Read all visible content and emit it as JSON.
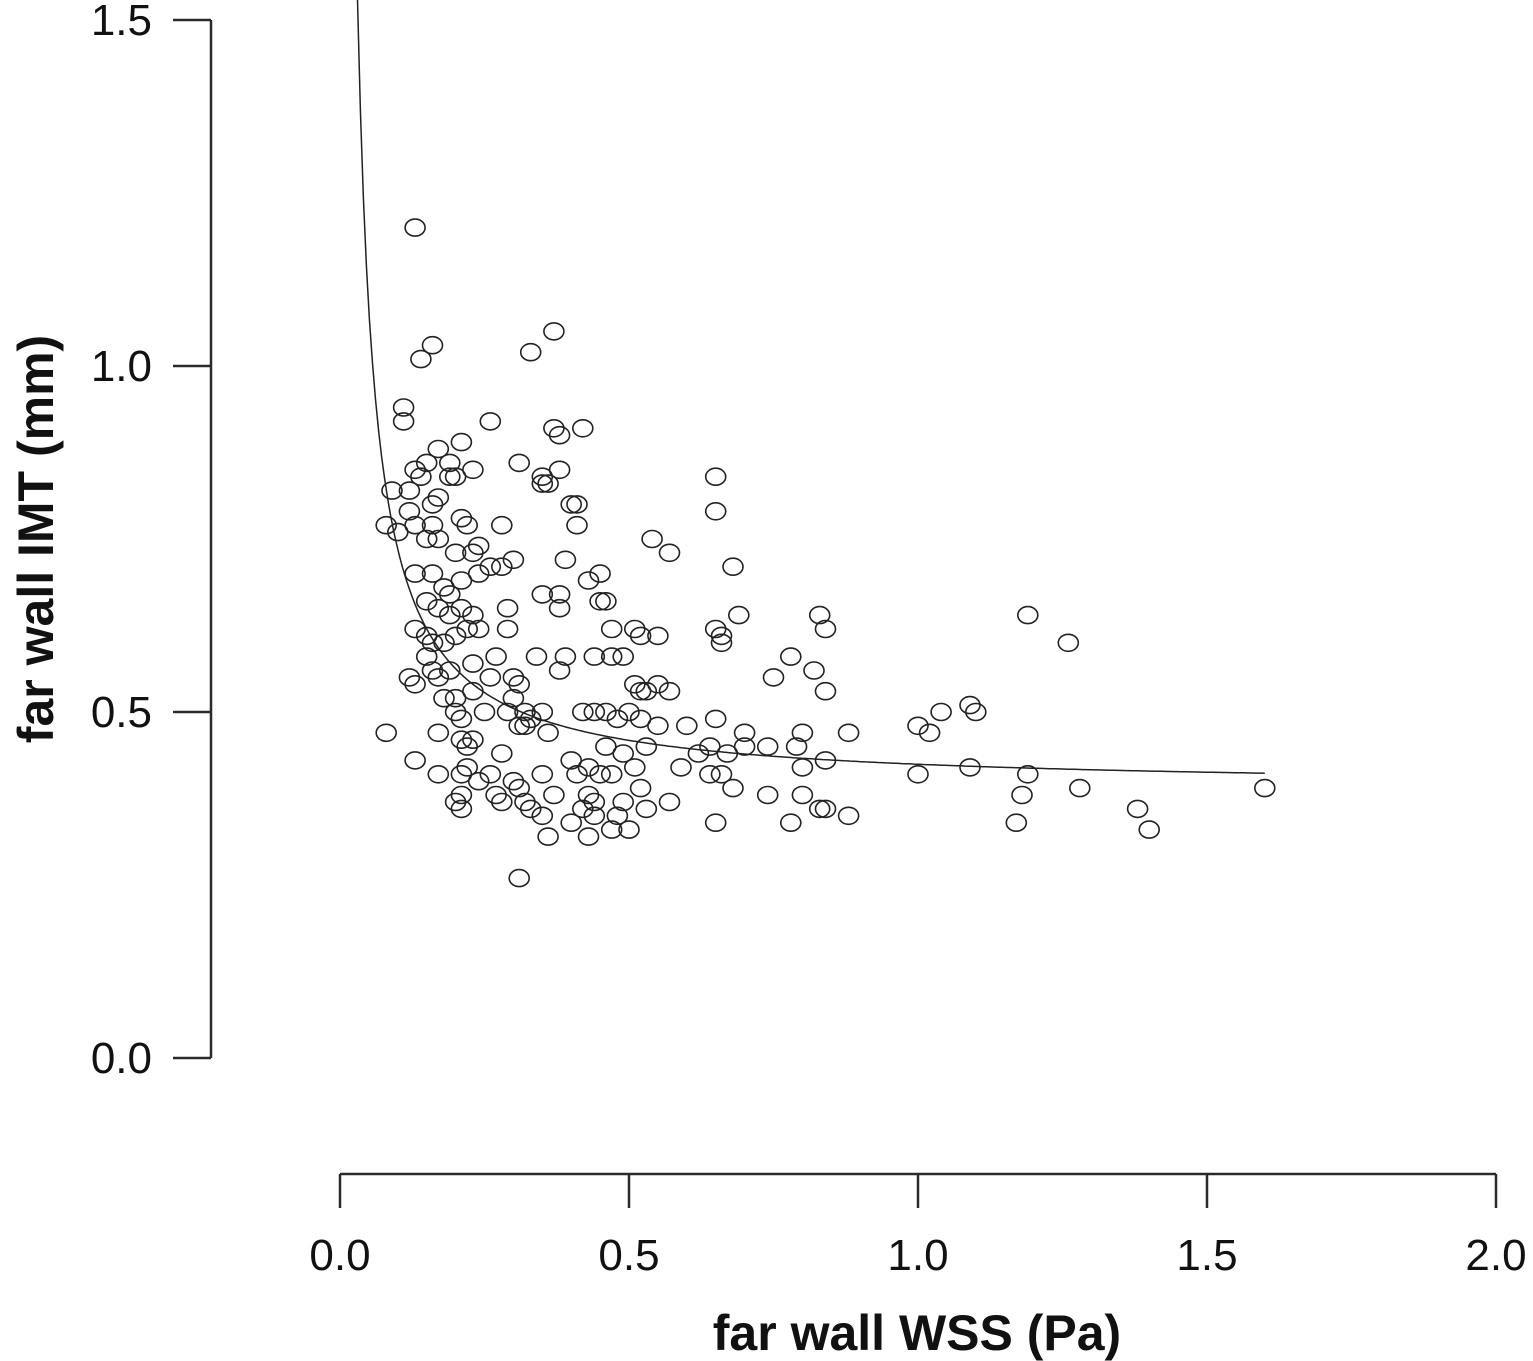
{
  "chart_data": {
    "type": "scatter",
    "xlabel": "far wall WSS (Pa)",
    "ylabel": "far wall IMT (mm)",
    "xlim": [
      0.0,
      2.0
    ],
    "ylim": [
      0.0,
      1.5
    ],
    "x_ticks": [
      "0.0",
      "0.5",
      "1.0",
      "1.5",
      "2.0"
    ],
    "y_ticks": [
      "0.0",
      "0.5",
      "1.0",
      "1.5"
    ],
    "grid": false,
    "fit_curve": {
      "form": "y = a + b / x",
      "a": 0.39,
      "b": 0.0345,
      "x_range": [
        0.03,
        1.6
      ]
    },
    "points": [
      [
        0.13,
        1.2
      ],
      [
        0.16,
        1.03
      ],
      [
        0.14,
        1.01
      ],
      [
        0.37,
        1.05
      ],
      [
        0.33,
        1.02
      ],
      [
        0.11,
        0.94
      ],
      [
        0.11,
        0.92
      ],
      [
        0.26,
        0.92
      ],
      [
        0.37,
        0.91
      ],
      [
        0.38,
        0.9
      ],
      [
        0.42,
        0.91
      ],
      [
        0.21,
        0.89
      ],
      [
        0.17,
        0.88
      ],
      [
        0.15,
        0.86
      ],
      [
        0.13,
        0.85
      ],
      [
        0.14,
        0.84
      ],
      [
        0.19,
        0.86
      ],
      [
        0.19,
        0.84
      ],
      [
        0.23,
        0.85
      ],
      [
        0.31,
        0.86
      ],
      [
        0.35,
        0.84
      ],
      [
        0.38,
        0.85
      ],
      [
        0.35,
        0.83
      ],
      [
        0.36,
        0.83
      ],
      [
        0.09,
        0.82
      ],
      [
        0.12,
        0.82
      ],
      [
        0.17,
        0.81
      ],
      [
        0.16,
        0.8
      ],
      [
        0.2,
        0.84
      ],
      [
        0.4,
        0.8
      ],
      [
        0.41,
        0.8
      ],
      [
        0.65,
        0.84
      ],
      [
        0.65,
        0.79
      ],
      [
        0.08,
        0.77
      ],
      [
        0.1,
        0.76
      ],
      [
        0.12,
        0.79
      ],
      [
        0.13,
        0.77
      ],
      [
        0.15,
        0.75
      ],
      [
        0.16,
        0.77
      ],
      [
        0.17,
        0.75
      ],
      [
        0.21,
        0.78
      ],
      [
        0.22,
        0.77
      ],
      [
        0.28,
        0.77
      ],
      [
        0.41,
        0.77
      ],
      [
        0.2,
        0.73
      ],
      [
        0.23,
        0.73
      ],
      [
        0.24,
        0.74
      ],
      [
        0.26,
        0.71
      ],
      [
        0.3,
        0.72
      ],
      [
        0.39,
        0.72
      ],
      [
        0.54,
        0.75
      ],
      [
        0.57,
        0.73
      ],
      [
        0.68,
        0.71
      ],
      [
        0.13,
        0.7
      ],
      [
        0.16,
        0.7
      ],
      [
        0.18,
        0.68
      ],
      [
        0.19,
        0.67
      ],
      [
        0.21,
        0.69
      ],
      [
        0.24,
        0.7
      ],
      [
        0.28,
        0.71
      ],
      [
        0.43,
        0.69
      ],
      [
        0.45,
        0.7
      ],
      [
        0.15,
        0.66
      ],
      [
        0.17,
        0.65
      ],
      [
        0.19,
        0.64
      ],
      [
        0.21,
        0.65
      ],
      [
        0.23,
        0.64
      ],
      [
        0.29,
        0.65
      ],
      [
        0.35,
        0.67
      ],
      [
        0.38,
        0.67
      ],
      [
        0.38,
        0.65
      ],
      [
        0.45,
        0.66
      ],
      [
        0.46,
        0.66
      ],
      [
        0.13,
        0.62
      ],
      [
        0.15,
        0.61
      ],
      [
        0.16,
        0.6
      ],
      [
        0.18,
        0.6
      ],
      [
        0.2,
        0.61
      ],
      [
        0.22,
        0.62
      ],
      [
        0.24,
        0.62
      ],
      [
        0.29,
        0.62
      ],
      [
        0.47,
        0.62
      ],
      [
        0.51,
        0.62
      ],
      [
        0.52,
        0.61
      ],
      [
        0.55,
        0.61
      ],
      [
        0.65,
        0.62
      ],
      [
        0.66,
        0.61
      ],
      [
        0.69,
        0.64
      ],
      [
        0.83,
        0.64
      ],
      [
        0.84,
        0.62
      ],
      [
        1.19,
        0.64
      ],
      [
        1.26,
        0.6
      ],
      [
        0.15,
        0.58
      ],
      [
        0.16,
        0.56
      ],
      [
        0.17,
        0.55
      ],
      [
        0.19,
        0.56
      ],
      [
        0.23,
        0.57
      ],
      [
        0.27,
        0.58
      ],
      [
        0.34,
        0.58
      ],
      [
        0.39,
        0.58
      ],
      [
        0.44,
        0.58
      ],
      [
        0.47,
        0.58
      ],
      [
        0.49,
        0.58
      ],
      [
        0.66,
        0.6
      ],
      [
        0.78,
        0.58
      ],
      [
        0.12,
        0.55
      ],
      [
        0.13,
        0.54
      ],
      [
        0.18,
        0.52
      ],
      [
        0.2,
        0.52
      ],
      [
        0.23,
        0.53
      ],
      [
        0.26,
        0.55
      ],
      [
        0.3,
        0.55
      ],
      [
        0.31,
        0.54
      ],
      [
        0.38,
        0.56
      ],
      [
        0.51,
        0.54
      ],
      [
        0.52,
        0.53
      ],
      [
        0.53,
        0.53
      ],
      [
        0.55,
        0.54
      ],
      [
        0.57,
        0.53
      ],
      [
        0.75,
        0.55
      ],
      [
        0.82,
        0.56
      ],
      [
        0.84,
        0.53
      ],
      [
        0.2,
        0.5
      ],
      [
        0.21,
        0.49
      ],
      [
        0.25,
        0.5
      ],
      [
        0.29,
        0.5
      ],
      [
        0.3,
        0.52
      ],
      [
        0.32,
        0.5
      ],
      [
        0.33,
        0.49
      ],
      [
        0.35,
        0.5
      ],
      [
        0.42,
        0.5
      ],
      [
        0.44,
        0.5
      ],
      [
        0.46,
        0.5
      ],
      [
        0.48,
        0.49
      ],
      [
        0.5,
        0.5
      ],
      [
        0.52,
        0.49
      ],
      [
        0.55,
        0.48
      ],
      [
        0.6,
        0.48
      ],
      [
        0.65,
        0.49
      ],
      [
        0.7,
        0.47
      ],
      [
        0.8,
        0.47
      ],
      [
        0.88,
        0.47
      ],
      [
        1.0,
        0.48
      ],
      [
        1.04,
        0.5
      ],
      [
        1.09,
        0.51
      ],
      [
        1.1,
        0.5
      ],
      [
        0.08,
        0.47
      ],
      [
        0.17,
        0.47
      ],
      [
        0.21,
        0.46
      ],
      [
        0.22,
        0.45
      ],
      [
        0.23,
        0.46
      ],
      [
        0.28,
        0.44
      ],
      [
        0.31,
        0.48
      ],
      [
        0.32,
        0.48
      ],
      [
        0.36,
        0.47
      ],
      [
        0.4,
        0.43
      ],
      [
        0.46,
        0.45
      ],
      [
        0.49,
        0.44
      ],
      [
        0.53,
        0.45
      ],
      [
        0.62,
        0.44
      ],
      [
        0.64,
        0.45
      ],
      [
        0.67,
        0.44
      ],
      [
        0.7,
        0.45
      ],
      [
        0.74,
        0.45
      ],
      [
        0.79,
        0.45
      ],
      [
        0.84,
        0.43
      ],
      [
        1.02,
        0.47
      ],
      [
        0.13,
        0.43
      ],
      [
        0.17,
        0.41
      ],
      [
        0.21,
        0.41
      ],
      [
        0.22,
        0.42
      ],
      [
        0.24,
        0.4
      ],
      [
        0.26,
        0.41
      ],
      [
        0.3,
        0.4
      ],
      [
        0.31,
        0.39
      ],
      [
        0.35,
        0.41
      ],
      [
        0.41,
        0.41
      ],
      [
        0.43,
        0.42
      ],
      [
        0.45,
        0.41
      ],
      [
        0.47,
        0.41
      ],
      [
        0.51,
        0.42
      ],
      [
        0.59,
        0.42
      ],
      [
        0.64,
        0.41
      ],
      [
        0.66,
        0.41
      ],
      [
        0.8,
        0.42
      ],
      [
        1.0,
        0.41
      ],
      [
        1.09,
        0.42
      ],
      [
        1.19,
        0.41
      ],
      [
        0.21,
        0.38
      ],
      [
        0.27,
        0.38
      ],
      [
        0.28,
        0.37
      ],
      [
        0.32,
        0.37
      ],
      [
        0.37,
        0.38
      ],
      [
        0.43,
        0.38
      ],
      [
        0.44,
        0.37
      ],
      [
        0.49,
        0.37
      ],
      [
        0.52,
        0.39
      ],
      [
        0.57,
        0.37
      ],
      [
        0.68,
        0.39
      ],
      [
        0.74,
        0.38
      ],
      [
        0.8,
        0.38
      ],
      [
        1.18,
        0.38
      ],
      [
        1.28,
        0.39
      ],
      [
        0.2,
        0.37
      ],
      [
        0.21,
        0.36
      ],
      [
        0.33,
        0.36
      ],
      [
        0.35,
        0.35
      ],
      [
        0.4,
        0.34
      ],
      [
        0.42,
        0.36
      ],
      [
        0.44,
        0.35
      ],
      [
        0.48,
        0.35
      ],
      [
        0.53,
        0.36
      ],
      [
        0.65,
        0.34
      ],
      [
        0.78,
        0.34
      ],
      [
        0.83,
        0.36
      ],
      [
        0.84,
        0.36
      ],
      [
        0.88,
        0.35
      ],
      [
        1.17,
        0.34
      ],
      [
        1.38,
        0.36
      ],
      [
        0.36,
        0.32
      ],
      [
        0.43,
        0.32
      ],
      [
        0.47,
        0.33
      ],
      [
        0.5,
        0.33
      ],
      [
        1.4,
        0.33
      ],
      [
        1.6,
        0.39
      ],
      [
        0.31,
        0.26
      ]
    ]
  }
}
